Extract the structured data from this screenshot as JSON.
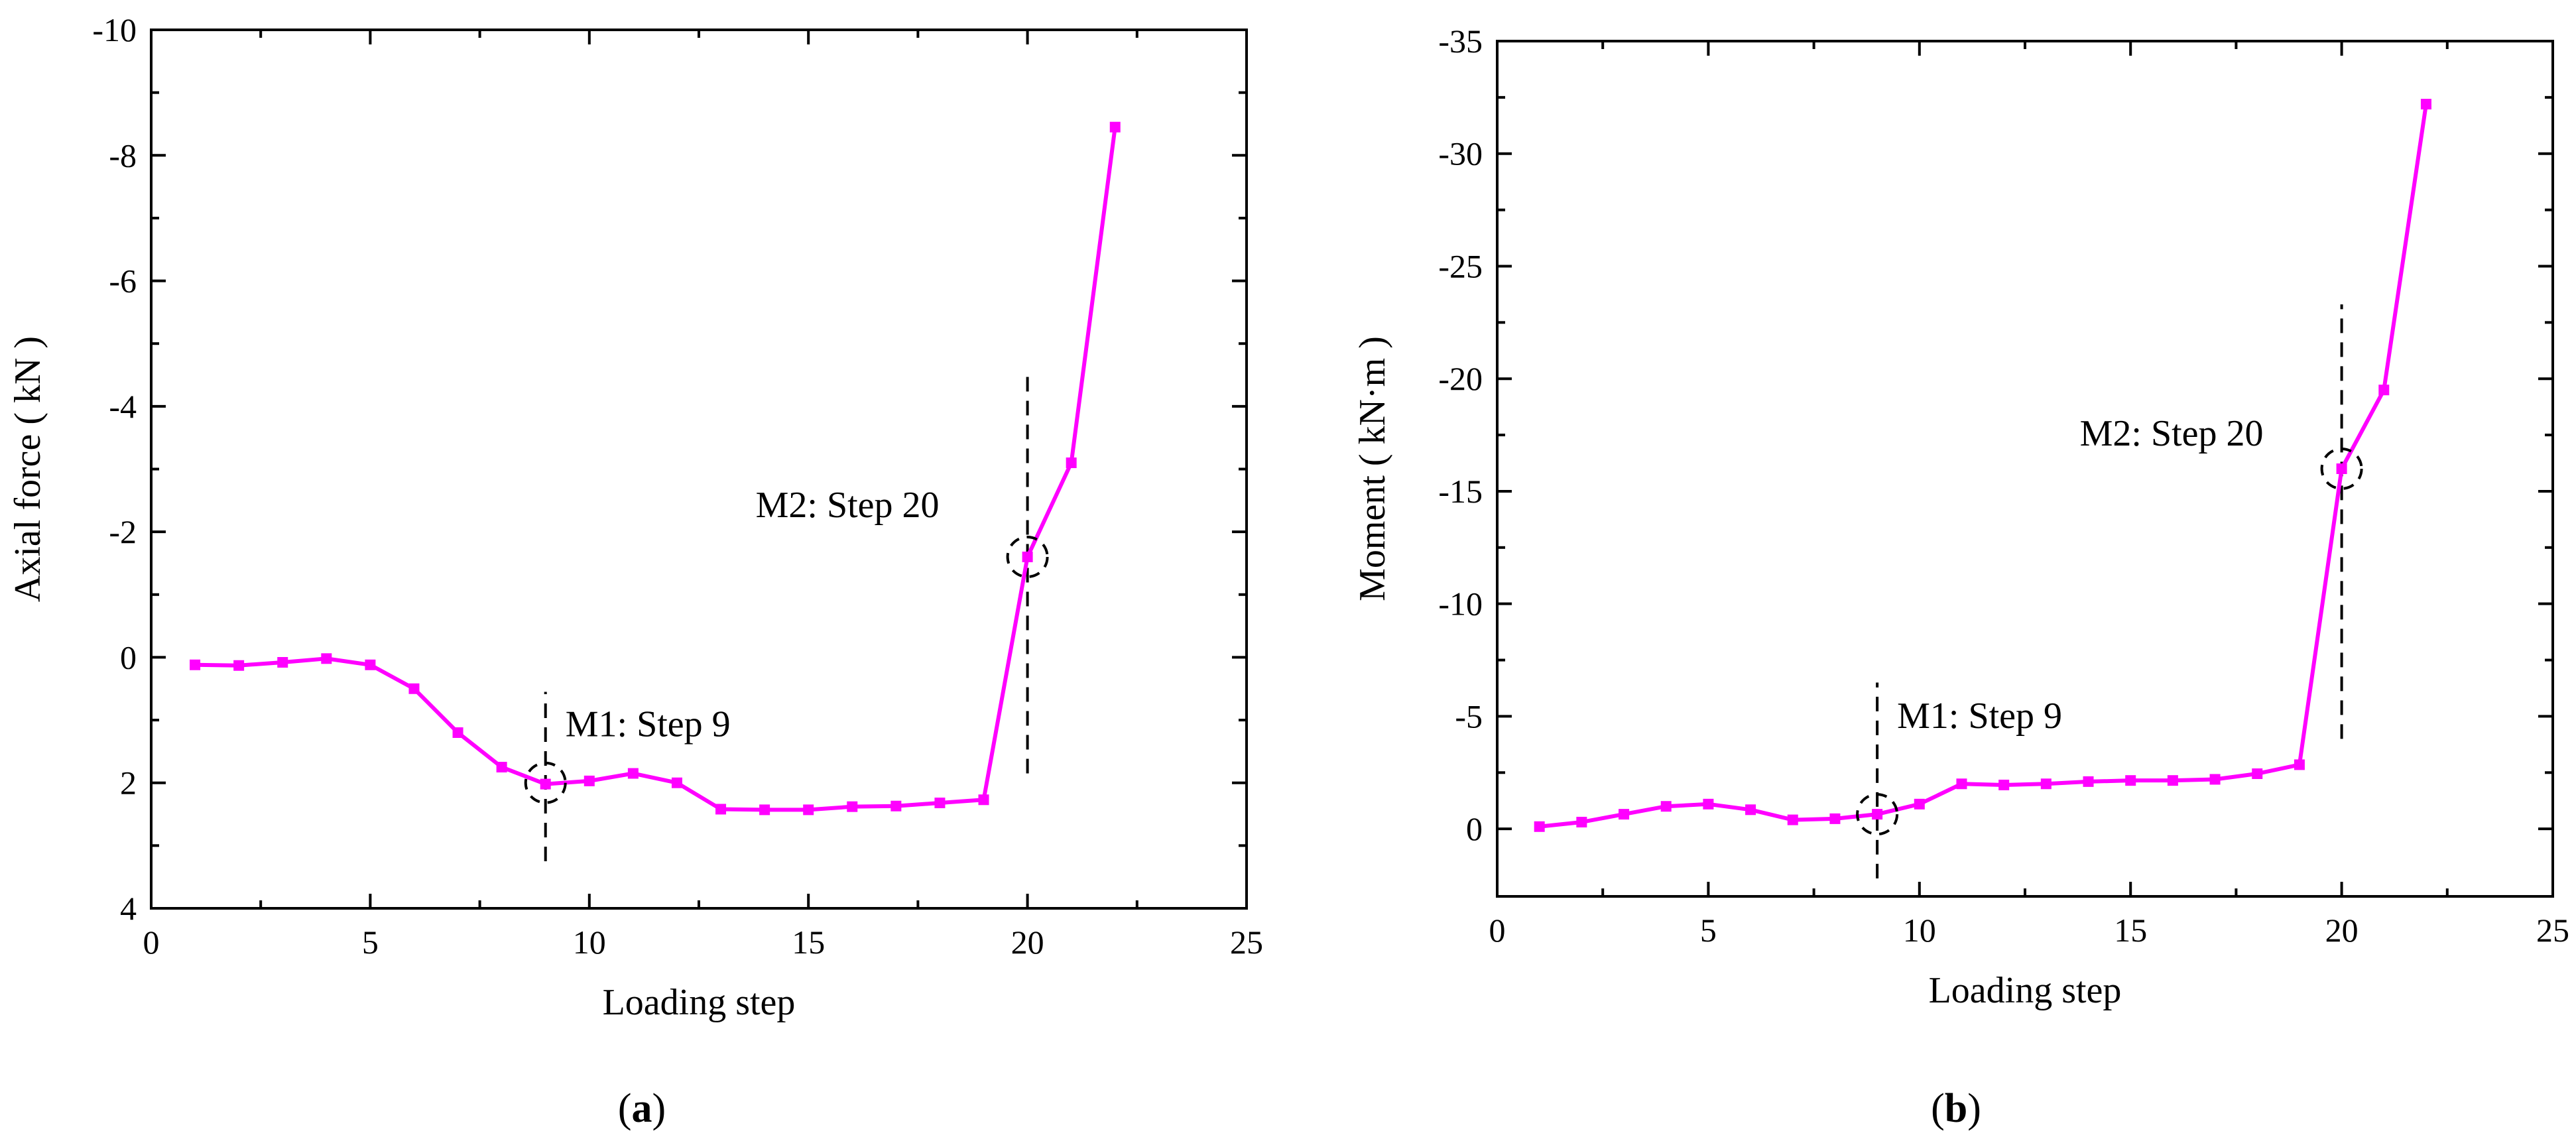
{
  "figure": {
    "panels": [
      {
        "id": "a",
        "label_open": "(",
        "label_letter": "a",
        "label_close": ")"
      },
      {
        "id": "b",
        "label_open": "(",
        "label_letter": "b",
        "label_close": ")"
      }
    ]
  },
  "chart_data": [
    {
      "type": "line",
      "panel": "a",
      "xlabel": "Loading step",
      "ylabel": "Axial force ( kN )",
      "xlim": [
        0,
        25
      ],
      "ylim": [
        4,
        -10
      ],
      "y_axis_inverted": true,
      "xticks": [
        0,
        5,
        10,
        15,
        20,
        25
      ],
      "yticks": [
        4,
        2,
        0,
        -2,
        -4,
        -6,
        -8,
        -10
      ],
      "grid": false,
      "legend": "none",
      "series_color": "#ff00ff",
      "marker": "square",
      "x": [
        1,
        2,
        3,
        4,
        5,
        6,
        7,
        8,
        9,
        10,
        11,
        12,
        13,
        14,
        15,
        16,
        17,
        18,
        19,
        20,
        21,
        22
      ],
      "y": [
        0.12,
        0.13,
        0.08,
        0.02,
        0.12,
        0.5,
        1.2,
        1.75,
        2.02,
        1.97,
        1.85,
        2.0,
        2.42,
        2.43,
        2.43,
        2.38,
        2.37,
        2.32,
        2.27,
        -1.6,
        -3.1,
        -8.45
      ],
      "annotations": [
        {
          "text": "M1: Step 9",
          "x": 9,
          "y": 2.0
        },
        {
          "text": "M2: Step 20",
          "x": 20,
          "y": -1.6
        }
      ],
      "reference_lines": [
        {
          "x": 9,
          "y_from": 3.25,
          "y_to": 0.55
        },
        {
          "x": 20,
          "y_from": 1.85,
          "y_to": -4.55
        }
      ]
    },
    {
      "type": "line",
      "panel": "b",
      "xlabel": "Loading step",
      "ylabel": "Moment ( kN·m )",
      "xlim": [
        0,
        25
      ],
      "ylim": [
        3,
        -35
      ],
      "y_axis_inverted": true,
      "xticks": [
        0,
        5,
        10,
        15,
        20,
        25
      ],
      "yticks": [
        0,
        -5,
        -10,
        -15,
        -20,
        -25,
        -30,
        -35
      ],
      "grid": false,
      "legend": "none",
      "series_color": "#ff00ff",
      "marker": "square",
      "x": [
        1,
        2,
        3,
        4,
        5,
        6,
        7,
        8,
        9,
        10,
        11,
        12,
        13,
        14,
        15,
        16,
        17,
        18,
        19,
        20,
        21,
        22
      ],
      "y": [
        -0.1,
        -0.3,
        -0.65,
        -1.0,
        -1.1,
        -0.85,
        -0.4,
        -0.45,
        -0.65,
        -1.1,
        -2.0,
        -1.95,
        -2.0,
        -2.1,
        -2.15,
        -2.15,
        -2.2,
        -2.45,
        -2.85,
        -16.0,
        -19.5,
        -32.2
      ],
      "annotations": [
        {
          "text": "M1: Step 9",
          "x": 9,
          "y": -0.65
        },
        {
          "text": "M2: Step 20",
          "x": 20,
          "y": -16.0
        }
      ],
      "reference_lines": [
        {
          "x": 9,
          "y_from": 2.2,
          "y_to": -6.5
        },
        {
          "x": 20,
          "y_from": -4.0,
          "y_to": -23.3
        }
      ]
    }
  ]
}
